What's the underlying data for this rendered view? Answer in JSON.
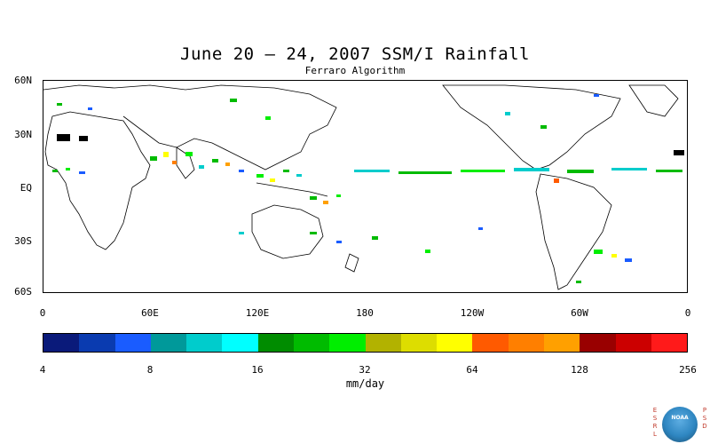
{
  "title": "June 20 – 24, 2007 SSM/I Rainfall",
  "subtitle": "Ferraro Algorithm",
  "lat_labels": [
    "60N",
    "30N",
    "EQ",
    "30S",
    "60S"
  ],
  "lon_labels": [
    "0",
    "60E",
    "120E",
    "180",
    "120W",
    "60W",
    "0"
  ],
  "colorbar": {
    "colors": [
      "#0a1a7a",
      "#0a3bb0",
      "#1a5cff",
      "#00999a",
      "#00cccc",
      "#00ffff",
      "#008c00",
      "#00bb00",
      "#00ee00",
      "#b2b200",
      "#dddd00",
      "#ffff00",
      "#ff5a00",
      "#ff7f00",
      "#ffa000",
      "#990000",
      "#cc0000",
      "#ff1a1a"
    ],
    "tick_labels": [
      "4",
      "8",
      "16",
      "32",
      "64",
      "128",
      "256"
    ],
    "units": "mm/day"
  },
  "logo": {
    "left_text": "ESRL",
    "right_text": "PSD",
    "center_text": "NOAA"
  }
}
